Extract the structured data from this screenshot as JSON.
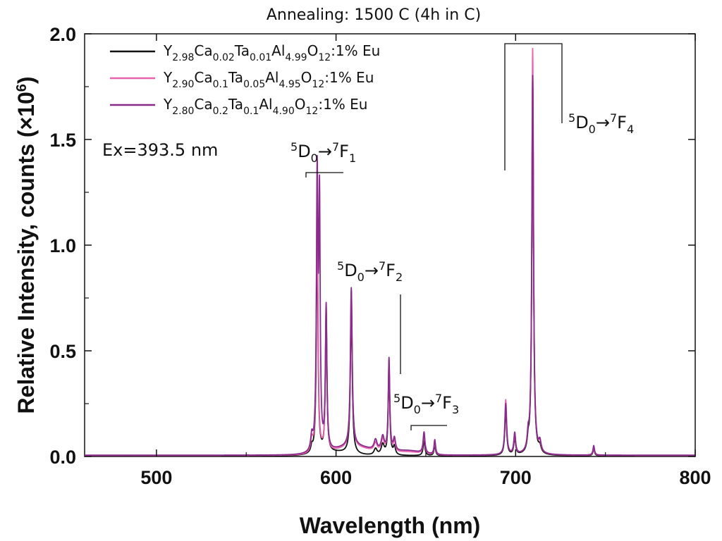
{
  "chart_data": {
    "type": "line",
    "title": "Annealing: 1500 C (4h in C)",
    "xlabel": "Wavelength (nm)",
    "ylabel": "Relative Intensity, counts (×10",
    "ylabel_power": "6",
    "ylabel_close": ")",
    "xlim": [
      460,
      800
    ],
    "ylim": [
      0,
      2.0
    ],
    "xticks": [
      500,
      600,
      700,
      800
    ],
    "yticks": [
      0.0,
      0.5,
      1.0,
      1.5,
      2.0
    ],
    "xtick_labels": [
      "500",
      "600",
      "700",
      "800"
    ],
    "ytick_labels": [
      "0.0",
      "0.5",
      "1.0",
      "1.5",
      "2.0"
    ],
    "grid": false,
    "legend_position": "top-left",
    "excitation_note": "Ex=393.5 nm",
    "series": [
      {
        "name": "Y2.98Ca0.02Ta0.01Al4.99O12:1% Eu",
        "name_parts": [
          [
            "Y",
            ""
          ],
          [
            "2.98",
            "sub"
          ],
          [
            "Ca",
            ""
          ],
          [
            "0.02",
            "sub"
          ],
          [
            "Ta",
            ""
          ],
          [
            "0.01",
            "sub"
          ],
          [
            "Al",
            ""
          ],
          [
            "4.99",
            "sub"
          ],
          [
            "O",
            ""
          ],
          [
            "12",
            "sub"
          ],
          [
            ":1% Eu",
            ""
          ]
        ],
        "color": "#111111",
        "baseline": 0.003,
        "bump": [
          [
            600,
            0.015,
            12
          ]
        ],
        "peaks": [
          [
            586.5,
            0.03,
            0.6
          ],
          [
            589.5,
            1.13,
            0.5
          ],
          [
            594.5,
            0.66,
            0.5
          ],
          [
            608.5,
            0.71,
            0.6
          ],
          [
            622.0,
            0.03,
            1.0
          ],
          [
            626.0,
            0.05,
            1.0
          ],
          [
            629.5,
            0.42,
            0.5
          ],
          [
            632.5,
            0.04,
            0.7
          ],
          [
            649.0,
            0.07,
            0.6
          ],
          [
            655.0,
            0.05,
            0.5
          ],
          [
            694.5,
            0.22,
            0.6
          ],
          [
            699.5,
            0.08,
            0.6
          ],
          [
            707.0,
            0.05,
            0.6
          ],
          [
            709.5,
            1.78,
            0.55
          ],
          [
            713.5,
            0.03,
            0.8
          ],
          [
            743.5,
            0.035,
            0.5
          ],
          [
            551.0,
            0.004,
            0.5
          ]
        ]
      },
      {
        "name": "Y2.90Ca0.1Ta0.05Al4.95O12:1% Eu",
        "name_parts": [
          [
            "Y",
            ""
          ],
          [
            "2.90",
            "sub"
          ],
          [
            "Ca",
            ""
          ],
          [
            "0.1",
            "sub"
          ],
          [
            "Ta",
            ""
          ],
          [
            "0.05",
            "sub"
          ],
          [
            "Al",
            ""
          ],
          [
            "4.95",
            "sub"
          ],
          [
            "O",
            ""
          ],
          [
            "12",
            "sub"
          ],
          [
            ":1% Eu",
            ""
          ]
        ],
        "color": "#e763ae",
        "baseline": 0.005,
        "bump": [
          [
            610,
            0.035,
            14
          ],
          [
            640,
            0.015,
            10
          ]
        ],
        "peaks": [
          [
            586.5,
            0.06,
            0.7
          ],
          [
            589.5,
            1.3,
            0.5
          ],
          [
            594.5,
            0.68,
            0.5
          ],
          [
            608.5,
            0.74,
            0.6
          ],
          [
            622.0,
            0.04,
            1.0
          ],
          [
            626.0,
            0.06,
            1.0
          ],
          [
            629.5,
            0.43,
            0.5
          ],
          [
            632.5,
            0.05,
            0.7
          ],
          [
            649.0,
            0.09,
            0.6
          ],
          [
            655.0,
            0.06,
            0.5
          ],
          [
            694.5,
            0.26,
            0.6
          ],
          [
            699.5,
            0.09,
            0.6
          ],
          [
            707.0,
            0.06,
            0.6
          ],
          [
            709.5,
            1.92,
            0.55
          ],
          [
            713.5,
            0.04,
            0.8
          ],
          [
            743.5,
            0.04,
            0.5
          ]
        ]
      },
      {
        "name": "Y2.80Ca0.2Ta0.1Al4.90O12:1% Eu",
        "name_parts": [
          [
            "Y",
            ""
          ],
          [
            "2.80",
            "sub"
          ],
          [
            "Ca",
            ""
          ],
          [
            "0.2",
            "sub"
          ],
          [
            "Ta",
            ""
          ],
          [
            "0.1",
            "sub"
          ],
          [
            "Al",
            ""
          ],
          [
            "4.90",
            "sub"
          ],
          [
            "O",
            ""
          ],
          [
            "12",
            "sub"
          ],
          [
            ":1% Eu",
            ""
          ]
        ],
        "color": "#8a2a8c",
        "baseline": 0.006,
        "bump": [
          [
            610,
            0.04,
            14
          ],
          [
            640,
            0.02,
            10
          ]
        ],
        "peaks": [
          [
            586.5,
            0.07,
            0.7
          ],
          [
            589.5,
            1.28,
            0.5
          ],
          [
            590.8,
            1.14,
            0.45
          ],
          [
            594.5,
            0.68,
            0.5
          ],
          [
            608.5,
            0.75,
            0.6
          ],
          [
            622.0,
            0.05,
            1.0
          ],
          [
            626.0,
            0.07,
            1.0
          ],
          [
            629.5,
            0.44,
            0.5
          ],
          [
            632.5,
            0.06,
            0.7
          ],
          [
            649.0,
            0.1,
            0.6
          ],
          [
            655.0,
            0.07,
            0.5
          ],
          [
            694.5,
            0.24,
            0.6
          ],
          [
            699.5,
            0.1,
            0.6
          ],
          [
            707.0,
            0.07,
            0.6
          ],
          [
            709.5,
            1.79,
            0.55
          ],
          [
            713.5,
            0.05,
            0.8
          ],
          [
            743.5,
            0.045,
            0.5
          ]
        ]
      }
    ],
    "annotations": [
      {
        "id": "f1",
        "parts": [
          [
            "5",
            "sup"
          ],
          [
            "D",
            ""
          ],
          [
            "0",
            "sub"
          ],
          [
            "→",
            ""
          ],
          [
            "7",
            "sup"
          ],
          [
            "F",
            ""
          ],
          [
            "1",
            "sub"
          ]
        ]
      },
      {
        "id": "f2",
        "parts": [
          [
            "5",
            "sup"
          ],
          [
            "D",
            ""
          ],
          [
            "0",
            "sub"
          ],
          [
            "→",
            ""
          ],
          [
            "7",
            "sup"
          ],
          [
            "F",
            ""
          ],
          [
            "2",
            "sub"
          ]
        ]
      },
      {
        "id": "f3",
        "parts": [
          [
            "5",
            "sup"
          ],
          [
            "D",
            ""
          ],
          [
            "0",
            "sub"
          ],
          [
            "→",
            ""
          ],
          [
            "7",
            "sup"
          ],
          [
            "F",
            ""
          ],
          [
            "3",
            "sub"
          ]
        ]
      },
      {
        "id": "f4",
        "parts": [
          [
            "5",
            "sup"
          ],
          [
            "D",
            ""
          ],
          [
            "0",
            "sub"
          ],
          [
            "→",
            ""
          ],
          [
            "7",
            "sup"
          ],
          [
            "F",
            ""
          ],
          [
            "4",
            "sub"
          ]
        ]
      }
    ]
  }
}
